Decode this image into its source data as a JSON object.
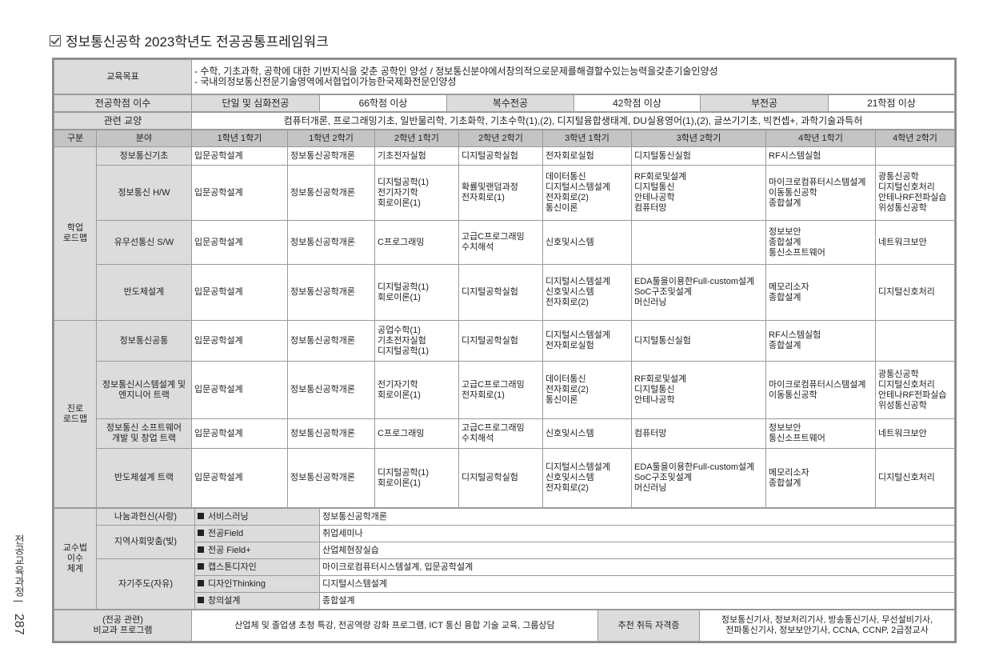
{
  "title": "정보통신공학 2023학년도 전공공통프레임워크",
  "title_icon": "checkbox-icon",
  "goals": {
    "label": "교육목표",
    "lines": [
      "- 수학, 기초과학, 공학에 대한 기반지식을 갖춘 공학인 양성 / 정보통신분야에서창의적으로문제를해결할수있는능력을갖춘기술인양성",
      "- 국내의정보통신전문기술영역에서협업이가능한국제화전문인양성"
    ]
  },
  "credits": {
    "label": "전공학점 이수",
    "items": [
      {
        "type": "단일 및 심화전공",
        "value": "66학점 이상"
      },
      {
        "type": "복수전공",
        "value": "42학점 이상"
      },
      {
        "type": "부전공",
        "value": "21학점 이상"
      }
    ]
  },
  "related": {
    "label": "관련 교양",
    "value": "컴퓨터개론, 프로그래밍기초, 일반물리학, 기초화학, 기초수학(1),(2), 디지털융합생태계, DU실용영어(1),(2), 글쓰기기초, 빅컨셉+, 과학기술과특허"
  },
  "headers": [
    "구분",
    "분야",
    "1학년 1학기",
    "1학년 2학기",
    "2학년 1학기",
    "2학년 2학기",
    "3학년 1학기",
    "3학년 2학기",
    "4학년 1학기",
    "4학년 2학기"
  ],
  "sections": [
    {
      "label": "학업\n로드맵",
      "rows": [
        {
          "field": "정보통신기초",
          "cells": [
            "입문공학설계",
            "정보통신공학개론",
            "기초전자실험",
            "디지털공학실험",
            "전자회로실험",
            "디지털통신실험",
            "RF시스템실험",
            ""
          ]
        },
        {
          "field": "정보통신 H/W",
          "cells": [
            "입문공학설계",
            "정보통신공학개론",
            "디지털공학(1)\n전기자기학\n회로이론(1)",
            "확률및랜덤과정\n전자회로(1)",
            "데이터통신\n디지털시스템설계\n전자회로(2)\n통신이론",
            "RF회로및설계\n디지털통신\n안테나공학\n컴퓨터망",
            "마이크로컴퓨터시스템설계\n이동통신공학\n종합설계",
            "광통신공학\n디지털신호처리\n안테나RF전파실습\n위성통신공학"
          ]
        },
        {
          "field": "유무선통신 S/W",
          "cells": [
            "입문공학설계",
            "정보통신공학개론",
            "C프로그래밍",
            "고급C프로그래밍\n수치해석",
            "신호및시스템",
            "",
            "정보보안\n종합설계\n통신소프트웨어",
            "네트워크보안"
          ]
        },
        {
          "field": "반도체설계",
          "cells": [
            "입문공학설계",
            "정보통신공학개론",
            "디지털공학(1)\n회로이론(1)",
            "디지털공학실험",
            "디지털시스템설계\n신호및시스템\n전자회로(2)",
            "EDA툴을이용한Full-custom설계\nSoC구조및설계\n머신러닝",
            "메모리소자\n종합설계",
            "디지털신호처리"
          ]
        }
      ]
    },
    {
      "label": "진로\n로드맵",
      "rows": [
        {
          "field": "정보통신공통",
          "cells": [
            "입문공학설계",
            "정보통신공학개론",
            "공업수학(1)\n기초전자실험\n디지털공학(1)",
            "디지털공학실험",
            "디지털시스템설계\n전자회로실험",
            "디지털통신실험",
            "RF시스템실험\n종합설계",
            ""
          ]
        },
        {
          "field": "정보통신시스템설계 및\n엔지니어 트랙",
          "cells": [
            "입문공학설계",
            "정보통신공학개론",
            "전기자기학\n회로이론(1)",
            "고급C프로그래밍\n전자회로(1)",
            "데이터통신\n전자회로(2)\n통신이론",
            "RF회로및설계\n디지털통신\n안테나공학",
            "마이크로컴퓨터시스템설계\n이동통신공학",
            "광통신공학\n디지털신호처리\n안테나RF전파실습\n위성통신공학"
          ]
        },
        {
          "field": "정보통신 소프트웨어\n개발 및 창업 트랙",
          "cells": [
            "입문공학설계",
            "정보통신공학개론",
            "C프로그래밍",
            "고급C프로그래밍\n수치해석",
            "신호및시스템",
            "컴퓨터망",
            "정보보안\n통신소프트웨어",
            "네트워크보안"
          ]
        },
        {
          "field": "반도체설계 트랙",
          "cells": [
            "입문공학설계",
            "정보통신공학개론",
            "디지털공학(1)\n회로이론(1)",
            "디지털공학실험",
            "디지털시스템설계\n신호및시스템\n전자회로(2)",
            "EDA툴을이용한Full-custom설계\nSoC구조및설계\n머신러닝",
            "메모리소자\n종합설계",
            "디지털신호처리"
          ]
        }
      ]
    }
  ],
  "teaching": {
    "label": "교수법\n이수\n체계",
    "groups": [
      {
        "name": "나눔과헌신(사랑)",
        "items": [
          {
            "method": "서비스러닝",
            "courses": "정보통신공학개론"
          }
        ]
      },
      {
        "name": "지역사회맞춤(빛)",
        "items": [
          {
            "method": "전공Field",
            "courses": "취업세미나"
          },
          {
            "method": "전공 Field+",
            "courses": "산업체현장실습"
          }
        ]
      },
      {
        "name": "자기주도(자유)",
        "items": [
          {
            "method": "캡스톤디자인",
            "courses": "마이크로컴퓨터시스템설계, 입문공학설계"
          },
          {
            "method": "디자인Thinking",
            "courses": "디지털시스템설계"
          },
          {
            "method": "창의설계",
            "courses": "종합설계"
          }
        ]
      }
    ]
  },
  "extracurricular": {
    "label": "(전공 관련)\n비교과 프로그램",
    "value": "산업체 및 졸업생 초청 특강, 전공역량 강화 프로그램, ICT 통신 융합 기술 교육, 그룹상담",
    "cert_label": "추천 취득 자격증",
    "certs": "정보통신기사, 정보처리기사, 방송통신기사, 무선설비기사,\n전파통신기사, 정보보안기사, CCNA, CCNP, 2급정교사"
  },
  "side": {
    "section": "전공교육과정",
    "page": "287"
  },
  "colors": {
    "label_bg": "#dcdcdc",
    "header_bg": "#c4c4c4",
    "border": "#9a9a9a"
  }
}
